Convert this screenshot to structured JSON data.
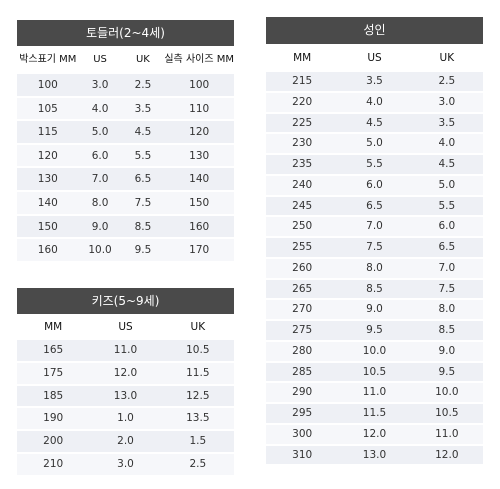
{
  "toddler": {
    "title": "토들러(2~4세)",
    "headers": [
      "박스표기 MM",
      "US",
      "UK",
      "실측 사이즈 MM"
    ],
    "rows": [
      [
        "100",
        "3.0",
        "2.5",
        "100"
      ],
      [
        "105",
        "4.0",
        "3.5",
        "110"
      ],
      [
        "115",
        "5.0",
        "4.5",
        "120"
      ],
      [
        "120",
        "6.0",
        "5.5",
        "130"
      ],
      [
        "130",
        "7.0",
        "6.5",
        "140"
      ],
      [
        "140",
        "8.0",
        "7.5",
        "150"
      ],
      [
        "150",
        "9.0",
        "8.5",
        "160"
      ],
      [
        "160",
        "10.0",
        "9.5",
        "170"
      ]
    ]
  },
  "kids": {
    "title": "키즈(5~9세)",
    "headers": [
      "MM",
      "US",
      "UK"
    ],
    "rows": [
      [
        "165",
        "11.0",
        "10.5"
      ],
      [
        "175",
        "12.0",
        "11.5"
      ],
      [
        "185",
        "13.0",
        "12.5"
      ],
      [
        "190",
        "1.0",
        "13.5"
      ],
      [
        "200",
        "2.0",
        "1.5"
      ],
      [
        "210",
        "3.0",
        "2.5"
      ]
    ]
  },
  "adult": {
    "title": "성인",
    "headers": [
      "MM",
      "US",
      "UK"
    ],
    "rows": [
      [
        "215",
        "3.5",
        "2.5"
      ],
      [
        "220",
        "4.0",
        "3.0"
      ],
      [
        "225",
        "4.5",
        "3.5"
      ],
      [
        "230",
        "5.0",
        "4.0"
      ],
      [
        "235",
        "5.5",
        "4.5"
      ],
      [
        "240",
        "6.0",
        "5.0"
      ],
      [
        "245",
        "6.5",
        "5.5"
      ],
      [
        "250",
        "7.0",
        "6.0"
      ],
      [
        "255",
        "7.5",
        "6.5"
      ],
      [
        "260",
        "8.0",
        "7.0"
      ],
      [
        "265",
        "8.5",
        "7.5"
      ],
      [
        "270",
        "9.0",
        "8.0"
      ],
      [
        "275",
        "9.5",
        "8.5"
      ],
      [
        "280",
        "10.0",
        "9.0"
      ],
      [
        "285",
        "10.5",
        "9.5"
      ],
      [
        "290",
        "11.0",
        "10.0"
      ],
      [
        "295",
        "11.5",
        "10.5"
      ],
      [
        "300",
        "12.0",
        "11.0"
      ],
      [
        "310",
        "13.0",
        "12.0"
      ]
    ]
  },
  "colors": {
    "title_bg": "#4a4a4a",
    "row_odd": "#eef0f5",
    "row_even": "#f6f7fa"
  }
}
